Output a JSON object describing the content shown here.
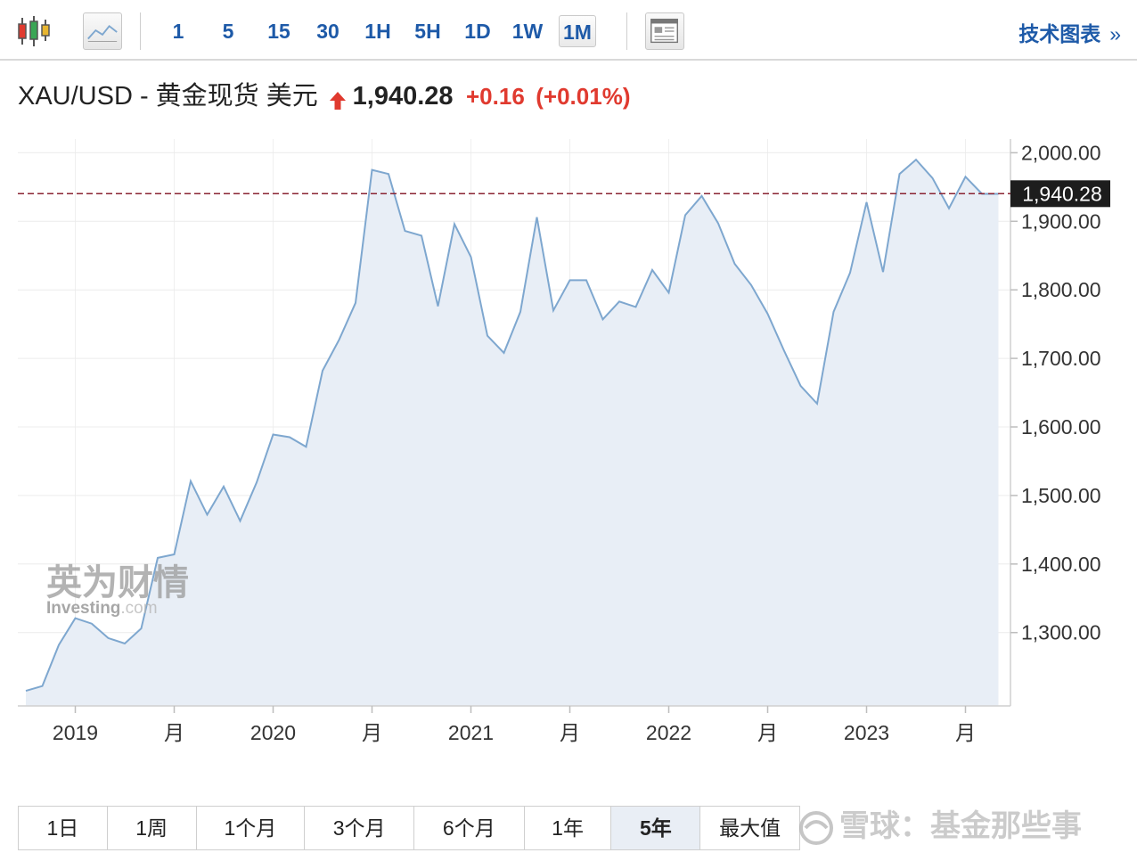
{
  "toolbar": {
    "intervals": [
      "1",
      "5",
      "15",
      "30",
      "1H",
      "5H",
      "1D",
      "1W",
      "1M"
    ],
    "active_interval": "1M",
    "tech_chart_label": "技术图表",
    "tech_chart_chevron": "»"
  },
  "quote": {
    "name": "XAU/USD - 黄金现货 美元",
    "price": "1,940.28",
    "change": "+0.16",
    "change_pct": "(+0.01%)",
    "up_color": "#e03a2f"
  },
  "watermarks": {
    "investing_cn": "英为财情",
    "investing_main": "Investing",
    "investing_suffix": ".com",
    "xueqiu": "雪球：基金那些事"
  },
  "range_buttons": [
    "1日",
    "1周",
    "1个月",
    "3个月",
    "6个月",
    "1年",
    "5年",
    "最大值"
  ],
  "active_range": "5年",
  "chart_data": {
    "type": "area",
    "title": "",
    "xlabel": "",
    "ylabel": "",
    "x_tick_labels": [
      "2019",
      "月",
      "2020",
      "月",
      "2021",
      "月",
      "2022",
      "月",
      "2023",
      "月"
    ],
    "y_tick_labels": [
      "2,000.00",
      "1,900.00",
      "1,800.00",
      "1,700.00",
      "1,600.00",
      "1,500.00",
      "1,400.00",
      "1,300.00"
    ],
    "y_ticks": [
      2000,
      1900,
      1800,
      1700,
      1600,
      1500,
      1400,
      1300
    ],
    "ylim": [
      1193,
      2020
    ],
    "current_price_label": "1,940.28",
    "current_price": 1940.28,
    "line_color": "#7ea7cf",
    "fill_color": "#e8eef6",
    "grid": true,
    "series": [
      {
        "x": [
          "2018-10",
          "2018-11",
          "2018-12",
          "2019-01",
          "2019-02",
          "2019-03",
          "2019-04",
          "2019-05",
          "2019-06",
          "2019-07",
          "2019-08",
          "2019-09",
          "2019-10",
          "2019-11",
          "2019-12",
          "2020-01",
          "2020-02",
          "2020-03",
          "2020-04",
          "2020-05",
          "2020-06",
          "2020-07",
          "2020-08",
          "2020-09",
          "2020-10",
          "2020-11",
          "2020-12",
          "2021-01",
          "2021-02",
          "2021-03",
          "2021-04",
          "2021-05",
          "2021-06",
          "2021-07",
          "2021-08",
          "2021-09",
          "2021-10",
          "2021-11",
          "2021-12",
          "2022-01",
          "2022-02",
          "2022-03",
          "2022-04",
          "2022-05",
          "2022-06",
          "2022-07",
          "2022-08",
          "2022-09",
          "2022-10",
          "2022-11",
          "2022-12",
          "2023-01",
          "2023-02",
          "2023-03",
          "2023-04",
          "2023-05",
          "2023-06",
          "2023-07",
          "2023-08",
          "2023-09"
        ],
        "values": [
          1215,
          1222,
          1282,
          1321,
          1313,
          1292,
          1284,
          1306,
          1409,
          1414,
          1521,
          1472,
          1513,
          1463,
          1519,
          1589,
          1585,
          1571,
          1682,
          1727,
          1781,
          1975,
          1969,
          1886,
          1879,
          1776,
          1896,
          1848,
          1733,
          1708,
          1768,
          1906,
          1770,
          1814,
          1814,
          1757,
          1783,
          1775,
          1829,
          1796,
          1909,
          1937,
          1897,
          1838,
          1807,
          1765,
          1711,
          1660,
          1634,
          1768,
          1825,
          1928,
          1826,
          1969,
          1990,
          1963,
          1919,
          1965,
          1940,
          1940
        ]
      }
    ]
  }
}
